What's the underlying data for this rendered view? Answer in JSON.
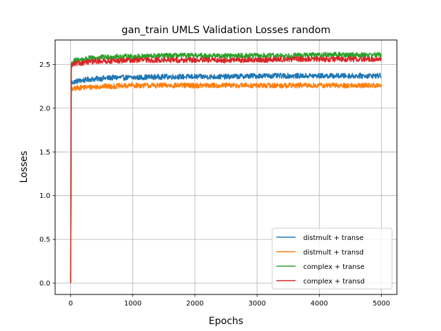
{
  "chart_data": {
    "type": "line",
    "title": "gan_train UMLS Validation Losses random",
    "xlabel": "Epochs",
    "ylabel": "Losses",
    "xlim": [
      -250,
      5250
    ],
    "ylim": [
      -0.13,
      2.78
    ],
    "xticks": [
      0,
      1000,
      2000,
      3000,
      4000,
      5000
    ],
    "yticks": [
      0.0,
      0.5,
      1.0,
      1.5,
      2.0,
      2.5
    ],
    "xtick_labels": [
      "0",
      "1000",
      "2000",
      "3000",
      "4000",
      "5000"
    ],
    "ytick_labels": [
      "0.0",
      "0.5",
      "1.0",
      "1.5",
      "2.0",
      "2.5"
    ],
    "grid": true,
    "legend_position": "lower-right",
    "series": [
      {
        "name": "distmult + transe",
        "color": "#1f77b4",
        "x": [
          0,
          10,
          20,
          50,
          100,
          200,
          300,
          500,
          700,
          1000,
          1500,
          2000,
          2500,
          3000,
          3500,
          4000,
          4500,
          5000
        ],
        "y": [
          0.0,
          2.28,
          2.29,
          2.3,
          2.31,
          2.32,
          2.33,
          2.34,
          2.35,
          2.35,
          2.36,
          2.36,
          2.36,
          2.37,
          2.37,
          2.37,
          2.37,
          2.37
        ],
        "noise": 0.03
      },
      {
        "name": "distmult + transd",
        "color": "#ff7f0e",
        "x": [
          0,
          10,
          20,
          50,
          100,
          200,
          300,
          500,
          700,
          1000,
          1500,
          2000,
          2500,
          3000,
          3500,
          4000,
          4500,
          5000
        ],
        "y": [
          0.0,
          2.2,
          2.21,
          2.22,
          2.23,
          2.24,
          2.24,
          2.25,
          2.25,
          2.26,
          2.26,
          2.26,
          2.26,
          2.26,
          2.26,
          2.26,
          2.26,
          2.26
        ],
        "noise": 0.03
      },
      {
        "name": "complex + transe",
        "color": "#2ca02c",
        "x": [
          0,
          10,
          20,
          50,
          100,
          200,
          300,
          500,
          700,
          1000,
          1500,
          2000,
          2500,
          3000,
          3500,
          4000,
          4500,
          5000
        ],
        "y": [
          0.0,
          2.5,
          2.52,
          2.54,
          2.55,
          2.56,
          2.57,
          2.58,
          2.59,
          2.59,
          2.6,
          2.6,
          2.6,
          2.6,
          2.6,
          2.61,
          2.61,
          2.61
        ],
        "noise": 0.03
      },
      {
        "name": "complex + transd",
        "color": "#d62728",
        "x": [
          0,
          10,
          20,
          50,
          100,
          200,
          300,
          500,
          700,
          1000,
          1500,
          2000,
          2500,
          3000,
          3500,
          4000,
          4500,
          5000
        ],
        "y": [
          0.0,
          2.48,
          2.49,
          2.5,
          2.51,
          2.52,
          2.53,
          2.54,
          2.54,
          2.55,
          2.55,
          2.55,
          2.55,
          2.55,
          2.56,
          2.56,
          2.56,
          2.56
        ],
        "noise": 0.03
      }
    ]
  }
}
